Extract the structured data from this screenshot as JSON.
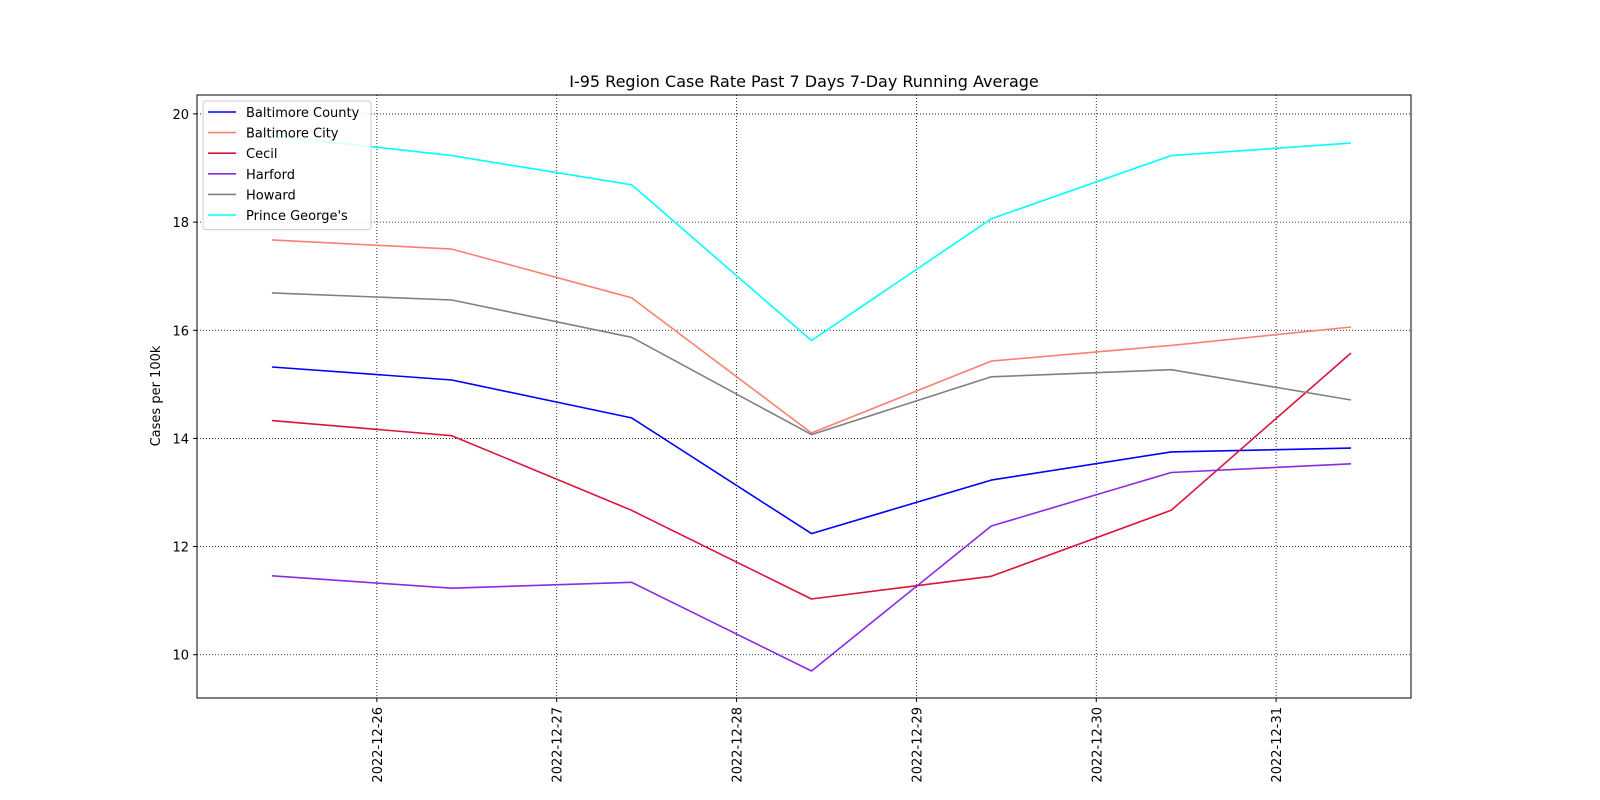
{
  "chart_data": {
    "type": "line",
    "title": "I-95 Region Case Rate  Past 7 Days 7-Day Running Average",
    "xlabel": "",
    "ylabel": "Cases per 100k",
    "x_tick_labels": [
      "2022-12-26",
      "2022-12-27",
      "2022-12-28",
      "2022-12-29",
      "2022-12-30",
      "2022-12-31"
    ],
    "x_ticks": [
      "2022-12-26",
      "2022-12-27",
      "2022-12-28",
      "2022-12-29",
      "2022-12-30",
      "2022-12-31"
    ],
    "x": [
      "2022-12-25 10:00",
      "2022-12-26 10:00",
      "2022-12-27 10:00",
      "2022-12-28 10:00",
      "2022-12-29 10:00",
      "2022-12-30 10:00",
      "2022-12-31 10:00"
    ],
    "xlim": [
      "2022-12-25 00:00",
      "2022-12-31 18:00"
    ],
    "ylim": [
      9.2,
      20.35
    ],
    "y_ticks": [
      10,
      12,
      14,
      16,
      18,
      20
    ],
    "grid": true,
    "grid_style": "dotted",
    "legend_position": "top-left",
    "series": [
      {
        "name": "Baltimore County",
        "color": "#0000ff",
        "values": [
          15.32,
          15.08,
          14.38,
          12.24,
          13.23,
          13.75,
          13.82
        ]
      },
      {
        "name": "Baltimore City",
        "color": "#fa8072",
        "values": [
          17.67,
          17.5,
          16.6,
          14.1,
          15.43,
          15.72,
          16.06
        ]
      },
      {
        "name": "Cecil",
        "color": "#dc143c",
        "values": [
          14.33,
          14.05,
          12.67,
          11.03,
          11.45,
          12.67,
          15.58
        ]
      },
      {
        "name": "Harford",
        "color": "#8a2be2",
        "values": [
          11.46,
          11.23,
          11.34,
          9.7,
          12.38,
          13.37,
          13.53
        ]
      },
      {
        "name": "Howard",
        "color": "#808080",
        "values": [
          16.69,
          16.56,
          15.87,
          14.07,
          15.14,
          15.27,
          14.71
        ]
      },
      {
        "name": "Prince George's",
        "color": "#00ffff",
        "values": [
          19.6,
          19.23,
          18.69,
          15.81,
          18.06,
          19.23,
          19.46
        ]
      }
    ]
  }
}
